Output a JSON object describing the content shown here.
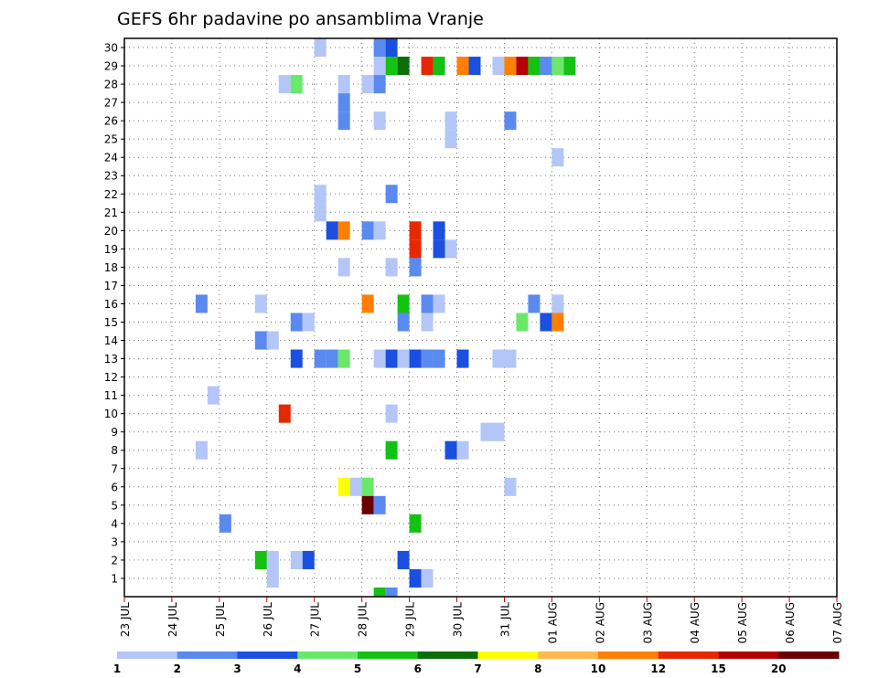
{
  "chart_data": {
    "type": "heatmap",
    "title": "GEFS 6hr padavine po ansamblima Vranje",
    "x_tick_labels": [
      "23 JUL",
      "24 JUL",
      "25 JUL",
      "26 JUL",
      "27 JUL",
      "28 JUL",
      "29 JUL",
      "30 JUL",
      "31 JUL",
      "01 AUG",
      "02 AUG",
      "03 AUG",
      "04 AUG",
      "05 AUG",
      "06 AUG",
      "07 AUG"
    ],
    "y_tick_labels": [
      "1",
      "2",
      "3",
      "4",
      "5",
      "6",
      "7",
      "8",
      "9",
      "10",
      "11",
      "12",
      "13",
      "14",
      "15",
      "16",
      "17",
      "18",
      "19",
      "20",
      "21",
      "22",
      "23",
      "24",
      "25",
      "26",
      "27",
      "28",
      "29",
      "30"
    ],
    "time_step_hours": 6,
    "grid": true,
    "legend_position": "bottom",
    "legend": {
      "labels": [
        "1",
        "2",
        "3",
        "4",
        "5",
        "6",
        "7",
        "8",
        "10",
        "12",
        "15",
        "20"
      ],
      "colors": [
        "#b3c6f7",
        "#5a8aef",
        "#1a4fe0",
        "#6ae86a",
        "#14c214",
        "#0b6e0b",
        "#ffff00",
        "#ffb84d",
        "#ff7f00",
        "#e62800",
        "#b40000",
        "#6a0000"
      ]
    },
    "cells": [
      {
        "member": 30,
        "step": 16,
        "value": 1
      },
      {
        "member": 30,
        "step": 21,
        "value": 2
      },
      {
        "member": 30,
        "step": 22,
        "value": 3
      },
      {
        "member": 29,
        "step": 21,
        "value": 1
      },
      {
        "member": 29,
        "step": 22,
        "value": 5
      },
      {
        "member": 29,
        "step": 23,
        "value": 6
      },
      {
        "member": 29,
        "step": 25,
        "value": 12
      },
      {
        "member": 29,
        "step": 26,
        "value": 5
      },
      {
        "member": 29,
        "step": 28,
        "value": 10
      },
      {
        "member": 29,
        "step": 29,
        "value": 3
      },
      {
        "member": 29,
        "step": 31,
        "value": 1
      },
      {
        "member": 29,
        "step": 32,
        "value": 10
      },
      {
        "member": 29,
        "step": 33,
        "value": 15
      },
      {
        "member": 29,
        "step": 34,
        "value": 5
      },
      {
        "member": 29,
        "step": 35,
        "value": 2
      },
      {
        "member": 29,
        "step": 36,
        "value": 4
      },
      {
        "member": 29,
        "step": 37,
        "value": 5
      },
      {
        "member": 28,
        "step": 13,
        "value": 1
      },
      {
        "member": 28,
        "step": 14,
        "value": 4
      },
      {
        "member": 28,
        "step": 18,
        "value": 1
      },
      {
        "member": 28,
        "step": 20,
        "value": 1
      },
      {
        "member": 28,
        "step": 21,
        "value": 2
      },
      {
        "member": 27,
        "step": 18,
        "value": 2
      },
      {
        "member": 26,
        "step": 18,
        "value": 2
      },
      {
        "member": 26,
        "step": 21,
        "value": 1
      },
      {
        "member": 26,
        "step": 27,
        "value": 1
      },
      {
        "member": 26,
        "step": 32,
        "value": 2
      },
      {
        "member": 25,
        "step": 27,
        "value": 1
      },
      {
        "member": 24,
        "step": 36,
        "value": 1
      },
      {
        "member": 22,
        "step": 16,
        "value": 1
      },
      {
        "member": 22,
        "step": 22,
        "value": 2
      },
      {
        "member": 21,
        "step": 16,
        "value": 1
      },
      {
        "member": 20,
        "step": 17,
        "value": 3
      },
      {
        "member": 20,
        "step": 18,
        "value": 10
      },
      {
        "member": 20,
        "step": 20,
        "value": 2
      },
      {
        "member": 20,
        "step": 21,
        "value": 1
      },
      {
        "member": 20,
        "step": 24,
        "value": 12
      },
      {
        "member": 20,
        "step": 26,
        "value": 3
      },
      {
        "member": 19,
        "step": 24,
        "value": 12
      },
      {
        "member": 19,
        "step": 26,
        "value": 3
      },
      {
        "member": 19,
        "step": 27,
        "value": 1
      },
      {
        "member": 18,
        "step": 18,
        "value": 1
      },
      {
        "member": 18,
        "step": 22,
        "value": 1
      },
      {
        "member": 18,
        "step": 24,
        "value": 2
      },
      {
        "member": 16,
        "step": 20,
        "value": 10
      },
      {
        "member": 16,
        "step": 23,
        "value": 5
      },
      {
        "member": 16,
        "step": 25,
        "value": 2
      },
      {
        "member": 16,
        "step": 26,
        "value": 1
      },
      {
        "member": 16,
        "step": 34,
        "value": 2
      },
      {
        "member": 16,
        "step": 36,
        "value": 1
      },
      {
        "member": 16,
        "step": 11,
        "value": 1
      },
      {
        "member": 16,
        "step": 6,
        "value": 2
      },
      {
        "member": 15,
        "step": 14,
        "value": 2
      },
      {
        "member": 15,
        "step": 15,
        "value": 1
      },
      {
        "member": 15,
        "step": 23,
        "value": 2
      },
      {
        "member": 15,
        "step": 25,
        "value": 1
      },
      {
        "member": 15,
        "step": 33,
        "value": 4
      },
      {
        "member": 15,
        "step": 35,
        "value": 3
      },
      {
        "member": 15,
        "step": 36,
        "value": 10
      },
      {
        "member": 14,
        "step": 11,
        "value": 2
      },
      {
        "member": 14,
        "step": 12,
        "value": 1
      },
      {
        "member": 13,
        "step": 14,
        "value": 3
      },
      {
        "member": 13,
        "step": 16,
        "value": 2
      },
      {
        "member": 13,
        "step": 17,
        "value": 2
      },
      {
        "member": 13,
        "step": 18,
        "value": 4
      },
      {
        "member": 13,
        "step": 21,
        "value": 1
      },
      {
        "member": 13,
        "step": 22,
        "value": 3
      },
      {
        "member": 13,
        "step": 23,
        "value": 1
      },
      {
        "member": 13,
        "step": 24,
        "value": 3
      },
      {
        "member": 13,
        "step": 25,
        "value": 2
      },
      {
        "member": 13,
        "step": 26,
        "value": 2
      },
      {
        "member": 13,
        "step": 28,
        "value": 3
      },
      {
        "member": 13,
        "step": 31,
        "value": 1
      },
      {
        "member": 13,
        "step": 32,
        "value": 1
      },
      {
        "member": 11,
        "step": 7,
        "value": 1
      },
      {
        "member": 10,
        "step": 13,
        "value": 12
      },
      {
        "member": 10,
        "step": 22,
        "value": 1
      },
      {
        "member": 9,
        "step": 30,
        "value": 1
      },
      {
        "member": 9,
        "step": 31,
        "value": 1
      },
      {
        "member": 8,
        "step": 6,
        "value": 1
      },
      {
        "member": 8,
        "step": 22,
        "value": 5
      },
      {
        "member": 8,
        "step": 27,
        "value": 3
      },
      {
        "member": 8,
        "step": 28,
        "value": 1
      },
      {
        "member": 6,
        "step": 18,
        "value": 7
      },
      {
        "member": 6,
        "step": 19,
        "value": 1
      },
      {
        "member": 6,
        "step": 20,
        "value": 4
      },
      {
        "member": 6,
        "step": 32,
        "value": 1
      },
      {
        "member": 5,
        "step": 20,
        "value": 20
      },
      {
        "member": 5,
        "step": 21,
        "value": 2
      },
      {
        "member": 4,
        "step": 8,
        "value": 2
      },
      {
        "member": 4,
        "step": 24,
        "value": 5
      },
      {
        "member": 2,
        "step": 11,
        "value": 5
      },
      {
        "member": 2,
        "step": 12,
        "value": 1
      },
      {
        "member": 2,
        "step": 14,
        "value": 1
      },
      {
        "member": 2,
        "step": 15,
        "value": 3
      },
      {
        "member": 2,
        "step": 23,
        "value": 3
      },
      {
        "member": 1,
        "step": 12,
        "value": 1
      },
      {
        "member": 1,
        "step": 24,
        "value": 3
      },
      {
        "member": 1,
        "step": 25,
        "value": 1
      },
      {
        "member": 0,
        "step": 21,
        "value": 5
      },
      {
        "member": 0,
        "step": 22,
        "value": 2
      }
    ]
  }
}
